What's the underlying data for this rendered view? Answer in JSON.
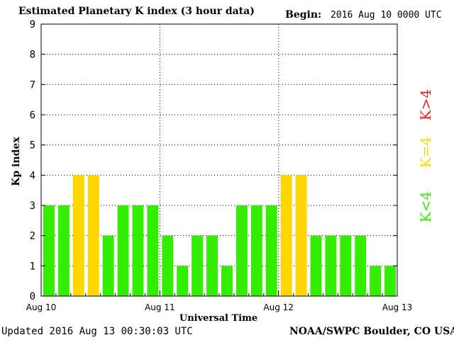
{
  "header": {
    "title": "Estimated Planetary K index (3 hour data)",
    "begin_label": "Begin:",
    "begin_value": "2016 Aug 10 0000 UTC"
  },
  "footer": {
    "updated": "Updated 2016 Aug 13 00:30:03 UTC",
    "credit": "NOAA/SWPC Boulder, CO USA"
  },
  "legend": {
    "high": "K>4",
    "equal": "K=4",
    "low": "K<4"
  },
  "colors": {
    "low": "#33ee00",
    "equal": "#ffd700",
    "high": "#ee2222",
    "axis": "#000000",
    "grid": "#000000"
  },
  "chart_data": {
    "type": "bar",
    "title": "Estimated Planetary K index (3 hour data)",
    "xlabel": "Universal Time",
    "ylabel": "Kp index",
    "ylim": [
      0,
      9
    ],
    "yticks": [
      "0",
      "1",
      "2",
      "3",
      "4",
      "5",
      "6",
      "7",
      "8",
      "9"
    ],
    "xticks": [
      "Aug 10",
      "Aug 11",
      "Aug 12",
      "Aug 13"
    ],
    "grid": true,
    "values": [
      3,
      3,
      4,
      4,
      2,
      3,
      3,
      3,
      2,
      1,
      2,
      2,
      1,
      3,
      3,
      3,
      4,
      4,
      2,
      2,
      2,
      2,
      1,
      1
    ]
  }
}
